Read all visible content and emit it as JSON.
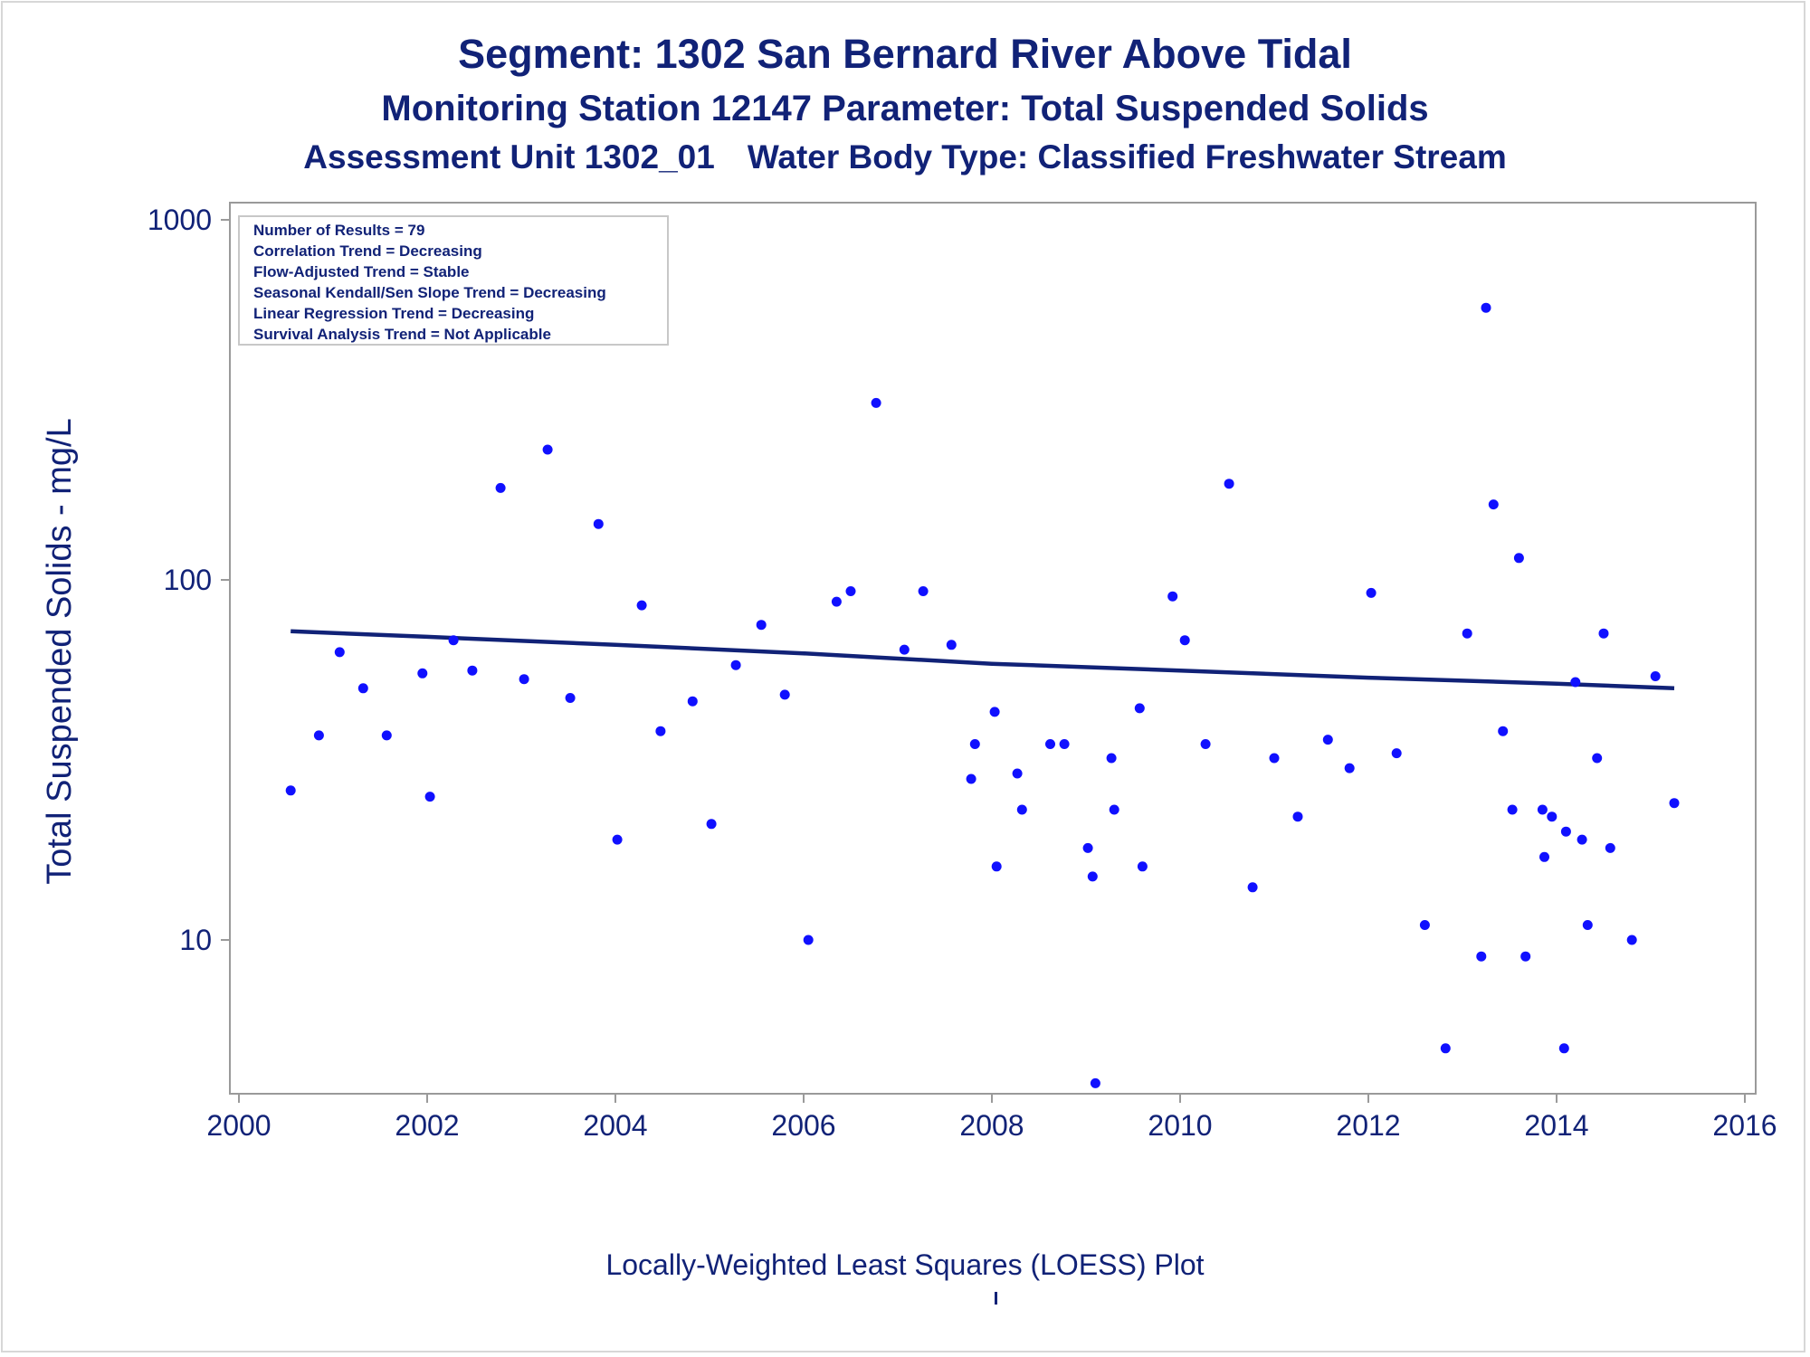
{
  "chart_data": {
    "type": "scatter",
    "title": "Segment: 1302  San Bernard River Above Tidal",
    "subtitle": "Monitoring Station 12147 Parameter: Total Suspended Solids",
    "subtitle2_left": "Assessment Unit 1302_01",
    "subtitle2_right": "Water Body Type: Classified Freshwater Stream",
    "ylabel": "Total Suspended Solids - mg/L",
    "xlabel": "Locally-Weighted Least Squares (LOESS) Plot",
    "footnote": "'",
    "y_scale": "log",
    "xlim": [
      2000,
      2016
    ],
    "ylim": [
      4,
      1000
    ],
    "x_ticks": [
      "2000",
      "2002",
      "2004",
      "2006",
      "2008",
      "2010",
      "2012",
      "2014",
      "2016"
    ],
    "y_ticks": [
      "10",
      "100",
      "1000"
    ],
    "grid": false,
    "inset_legend": [
      "Number of Results = 79",
      "Correlation Trend = Decreasing",
      "Flow-Adjusted Trend = Stable",
      "Seasonal Kendall/Sen Slope Trend = Decreasing",
      "Linear Regression Trend = Decreasing",
      "Survival Analysis Trend = Not Applicable"
    ],
    "inset_placement": "top-left",
    "colors": {
      "points": "#1010ff",
      "trend": "#112277",
      "text": "#112277"
    },
    "series": [
      {
        "type": "scatter",
        "points": [
          [
            2000.55,
            26
          ],
          [
            2000.85,
            37
          ],
          [
            2001.07,
            63
          ],
          [
            2001.32,
            50
          ],
          [
            2001.57,
            37
          ],
          [
            2001.95,
            55
          ],
          [
            2002.03,
            25
          ],
          [
            2002.28,
            68
          ],
          [
            2002.48,
            56
          ],
          [
            2002.78,
            180
          ],
          [
            2003.03,
            53
          ],
          [
            2003.28,
            230
          ],
          [
            2003.52,
            47
          ],
          [
            2003.82,
            143
          ],
          [
            2004.02,
            19
          ],
          [
            2004.28,
            85
          ],
          [
            2004.48,
            38
          ],
          [
            2004.82,
            46
          ],
          [
            2005.02,
            21
          ],
          [
            2005.28,
            58
          ],
          [
            2005.55,
            75
          ],
          [
            2005.8,
            48
          ],
          [
            2006.05,
            10
          ],
          [
            2006.35,
            87
          ],
          [
            2006.5,
            93
          ],
          [
            2006.77,
            310
          ],
          [
            2007.07,
            64
          ],
          [
            2007.27,
            93
          ],
          [
            2007.57,
            66
          ],
          [
            2007.78,
            28
          ],
          [
            2007.82,
            35
          ],
          [
            2008.03,
            43
          ],
          [
            2008.05,
            16
          ],
          [
            2008.27,
            29
          ],
          [
            2008.32,
            23
          ],
          [
            2008.62,
            35
          ],
          [
            2008.77,
            35
          ],
          [
            2009.02,
            18
          ],
          [
            2009.07,
            15
          ],
          [
            2009.1,
            4
          ],
          [
            2009.27,
            32
          ],
          [
            2009.3,
            23
          ],
          [
            2009.57,
            44
          ],
          [
            2009.6,
            16
          ],
          [
            2009.92,
            90
          ],
          [
            2010.05,
            68
          ],
          [
            2010.27,
            35
          ],
          [
            2010.52,
            185
          ],
          [
            2010.77,
            14
          ],
          [
            2011.0,
            32
          ],
          [
            2011.25,
            22
          ],
          [
            2011.57,
            36
          ],
          [
            2011.8,
            30
          ],
          [
            2012.03,
            92
          ],
          [
            2012.3,
            33
          ],
          [
            2012.6,
            11
          ],
          [
            2012.82,
            5
          ],
          [
            2013.05,
            71
          ],
          [
            2013.2,
            9
          ],
          [
            2013.25,
            570
          ],
          [
            2013.33,
            162
          ],
          [
            2013.43,
            38
          ],
          [
            2013.53,
            23
          ],
          [
            2013.6,
            115
          ],
          [
            2013.67,
            9
          ],
          [
            2013.85,
            23
          ],
          [
            2013.87,
            17
          ],
          [
            2013.95,
            22
          ],
          [
            2014.08,
            5
          ],
          [
            2014.1,
            20
          ],
          [
            2014.2,
            52
          ],
          [
            2014.27,
            19
          ],
          [
            2014.33,
            11
          ],
          [
            2014.43,
            32
          ],
          [
            2014.5,
            71
          ],
          [
            2014.57,
            18
          ],
          [
            2014.8,
            10
          ],
          [
            2015.05,
            54
          ],
          [
            2015.25,
            24
          ]
        ]
      },
      {
        "type": "line",
        "points": [
          [
            2000.55,
            72
          ],
          [
            2002.0,
            69.5
          ],
          [
            2004.0,
            66
          ],
          [
            2006.0,
            62.5
          ],
          [
            2008.0,
            58.5
          ],
          [
            2010.0,
            56
          ],
          [
            2012.0,
            53.5
          ],
          [
            2014.0,
            51.5
          ],
          [
            2015.25,
            50
          ]
        ]
      }
    ]
  }
}
